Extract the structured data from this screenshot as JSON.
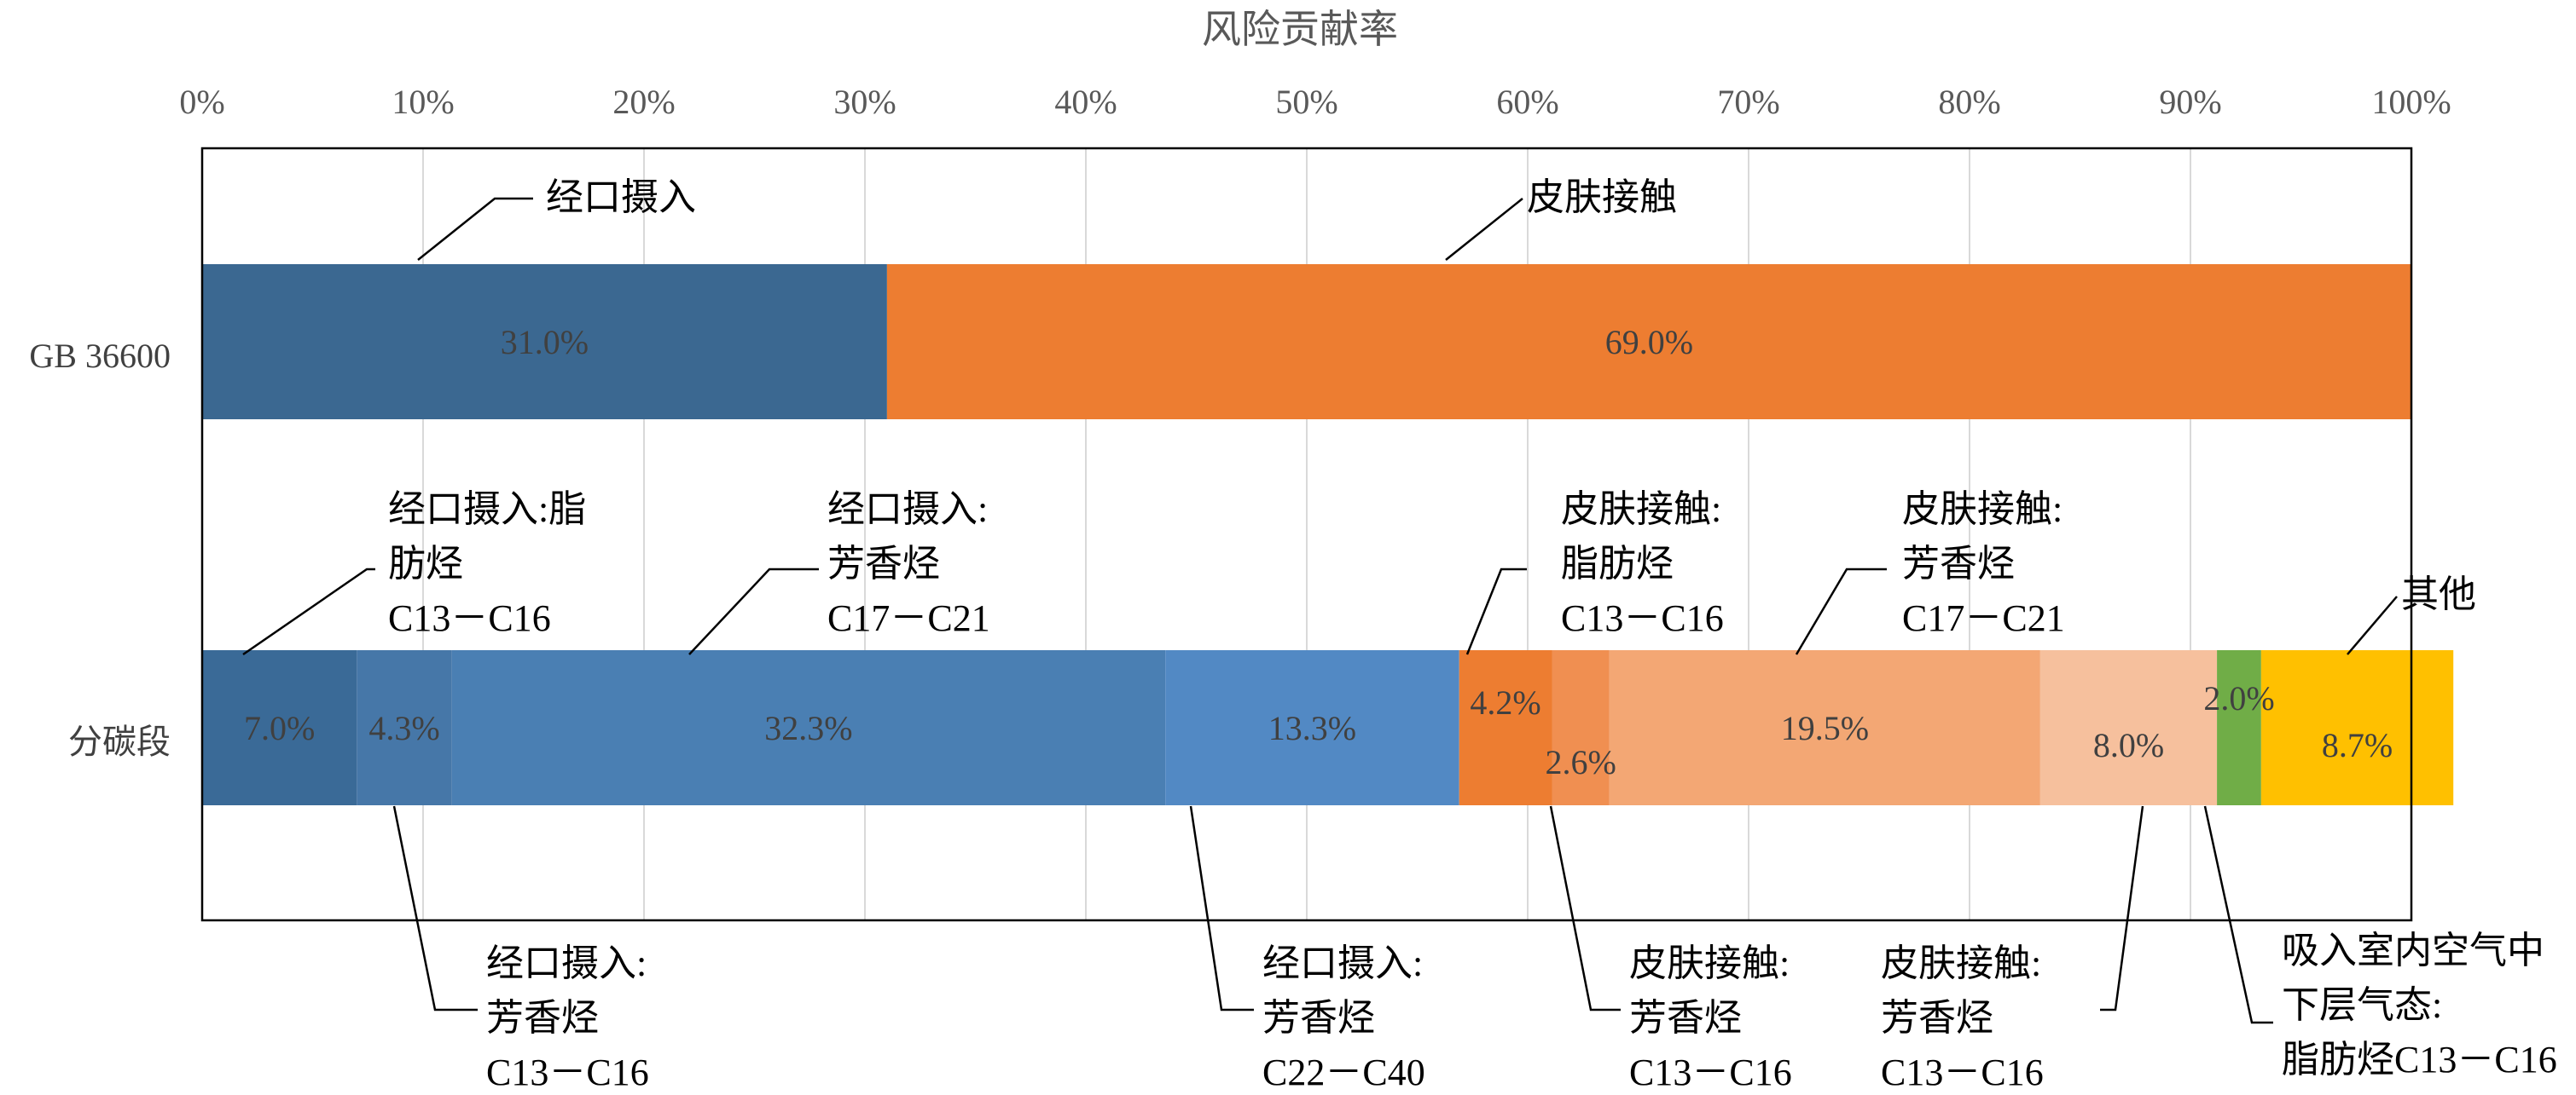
{
  "chart_data": {
    "type": "bar",
    "orientation": "horizontal",
    "stacked": true,
    "title": "风险贡献率",
    "xaxis_position": "top",
    "xlim": [
      0,
      100
    ],
    "xticks": [
      "0%",
      "10%",
      "20%",
      "30%",
      "40%",
      "50%",
      "60%",
      "70%",
      "80%",
      "90%",
      "100%"
    ],
    "grid": true,
    "categories": [
      {
        "name": "GB 36600",
        "segments": [
          {
            "value": 31.0,
            "label": "31.0%",
            "color": "#3b6891",
            "annotation": [
              "经口摄入"
            ]
          },
          {
            "value": 69.0,
            "label": "69.0%",
            "color": "#ed7d31",
            "annotation": [
              "皮肤接触"
            ]
          }
        ]
      },
      {
        "name": "分碳段",
        "segments": [
          {
            "value": 7.0,
            "label": "7.0%",
            "color": "#3a6a97",
            "annotation": [
              "经口摄入:脂",
              "肪烃",
              "C13－C16"
            ]
          },
          {
            "value": 4.3,
            "label": "4.3%",
            "color": "#4677a8",
            "annotation": [
              "经口摄入:",
              "芳香烃",
              "C13－C16"
            ]
          },
          {
            "value": 32.3,
            "label": "32.3%",
            "color": "#4a7fb3",
            "annotation": [
              "经口摄入:",
              "芳香烃",
              "C17－C21"
            ]
          },
          {
            "value": 13.3,
            "label": "13.3%",
            "color": "#5289c4",
            "annotation": [
              "经口摄入:",
              "芳香烃",
              "C22－C40"
            ]
          },
          {
            "value": 4.2,
            "label": "4.2%",
            "color": "#ed7d31",
            "annotation": [
              "皮肤接触:",
              "脂肪烃",
              "C13－C16"
            ]
          },
          {
            "value": 2.6,
            "label": "2.6%",
            "color": "#f08f51",
            "annotation": [
              "皮肤接触:",
              "芳香烃",
              "C13－C16"
            ]
          },
          {
            "value": 19.5,
            "label": "19.5%",
            "color": "#f3a774",
            "annotation": [
              "皮肤接触:",
              "芳香烃",
              "C17－C21"
            ]
          },
          {
            "value": 8.0,
            "label": "8.0%",
            "color": "#f6c09d",
            "annotation": [
              "皮肤接触:",
              "芳香烃",
              "C13－C16"
            ]
          },
          {
            "value": 2.0,
            "label": "2.0%",
            "color": "#70ad47",
            "annotation": [
              "吸入室内空气中",
              "下层气态:",
              "脂肪烃C13－C16"
            ]
          },
          {
            "value": 8.7,
            "label": "8.7%",
            "color": "#ffc000",
            "annotation": [
              "其他"
            ]
          }
        ]
      }
    ]
  }
}
